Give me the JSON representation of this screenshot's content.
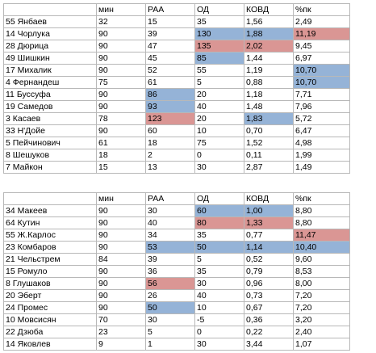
{
  "colors": {
    "highlight_blue": "#95b3d7",
    "highlight_red": "#da9694",
    "grid": "#b8b8b8"
  },
  "table1": {
    "headers": [
      "",
      "мин",
      "РАА",
      "ОД",
      "КОВД",
      "%пк"
    ],
    "rows": [
      {
        "cells": [
          "55 Янбаев",
          "32",
          "15",
          "35",
          "1,56",
          "2,49"
        ],
        "hl": [
          "",
          "",
          "",
          "",
          "",
          ""
        ]
      },
      {
        "cells": [
          "14 Чорлука",
          "90",
          "39",
          "130",
          "1,88",
          "11,19"
        ],
        "hl": [
          "",
          "",
          "",
          "blue",
          "blue",
          "red"
        ]
      },
      {
        "cells": [
          "28 Дюрица",
          "90",
          "47",
          "135",
          "2,02",
          "9,45"
        ],
        "hl": [
          "",
          "",
          "",
          "red",
          "red",
          ""
        ]
      },
      {
        "cells": [
          "49 Шишкин",
          "90",
          "45",
          "85",
          "1,44",
          "6,97"
        ],
        "hl": [
          "",
          "",
          "",
          "blue",
          "",
          ""
        ]
      },
      {
        "cells": [
          "17 Михалик",
          "90",
          "52",
          "55",
          "1,19",
          "10,70"
        ],
        "hl": [
          "",
          "",
          "",
          "",
          "",
          "blue"
        ]
      },
      {
        "cells": [
          "4 Фернандеш",
          "75",
          "61",
          "5",
          "0,88",
          "10,70"
        ],
        "hl": [
          "",
          "",
          "",
          "",
          "",
          "blue"
        ]
      },
      {
        "cells": [
          "11 Буссуфа",
          "90",
          "86",
          "20",
          "1,18",
          "7,71"
        ],
        "hl": [
          "",
          "",
          "blue",
          "",
          "",
          ""
        ]
      },
      {
        "cells": [
          "19 Самедов",
          "90",
          "93",
          "40",
          "1,48",
          "7,96"
        ],
        "hl": [
          "",
          "",
          "blue",
          "",
          "",
          ""
        ]
      },
      {
        "cells": [
          "3 Касаев",
          "78",
          "123",
          "20",
          "1,83",
          "5,72"
        ],
        "hl": [
          "",
          "",
          "red",
          "",
          "blue",
          ""
        ]
      },
      {
        "cells": [
          "33 Н'Дойе",
          "90",
          "60",
          "10",
          "0,70",
          "6,47"
        ],
        "hl": [
          "",
          "",
          "",
          "",
          "",
          ""
        ]
      },
      {
        "cells": [
          "5 Пейчинович",
          "61",
          "18",
          "75",
          "1,52",
          "4,98"
        ],
        "hl": [
          "",
          "",
          "",
          "",
          "",
          ""
        ]
      },
      {
        "cells": [
          "8 Шешуков",
          "18",
          "2",
          "0",
          "0,11",
          "1,99"
        ],
        "hl": [
          "",
          "",
          "",
          "",
          "",
          ""
        ]
      },
      {
        "cells": [
          "7 Майкон",
          "15",
          "13",
          "30",
          "2,87",
          "1,49"
        ],
        "hl": [
          "",
          "",
          "",
          "",
          "",
          ""
        ]
      }
    ]
  },
  "table2": {
    "headers": [
      "",
      "мин",
      "РАА",
      "ОД",
      "КОВД",
      "%пк"
    ],
    "rows": [
      {
        "cells": [
          "34 Макеев",
          "90",
          "30",
          "60",
          "1,00",
          "8,80"
        ],
        "hl": [
          "",
          "",
          "",
          "blue",
          "blue",
          ""
        ]
      },
      {
        "cells": [
          "64 Кутин",
          "90",
          "40",
          "80",
          "1,33",
          "8,80"
        ],
        "hl": [
          "",
          "",
          "",
          "red",
          "red",
          ""
        ]
      },
      {
        "cells": [
          "55 Ж.Карлос",
          "90",
          "34",
          "35",
          "0,77",
          "11,47"
        ],
        "hl": [
          "",
          "",
          "",
          "",
          "",
          "red"
        ]
      },
      {
        "cells": [
          "23 Комбаров",
          "90",
          "53",
          "50",
          "1,14",
          "10,40"
        ],
        "hl": [
          "",
          "",
          "blue",
          "blue",
          "blue",
          "blue"
        ]
      },
      {
        "cells": [
          "21 Чельстрем",
          "84",
          "39",
          "5",
          "0,52",
          "9,60"
        ],
        "hl": [
          "",
          "",
          "",
          "",
          "",
          ""
        ]
      },
      {
        "cells": [
          "15 Ромуло",
          "90",
          "36",
          "35",
          "0,79",
          "8,53"
        ],
        "hl": [
          "",
          "",
          "",
          "",
          "",
          ""
        ]
      },
      {
        "cells": [
          "8 Глушаков",
          "90",
          "56",
          "30",
          "0,96",
          "8,00"
        ],
        "hl": [
          "",
          "",
          "red",
          "",
          "",
          ""
        ]
      },
      {
        "cells": [
          "20 Эберт",
          "90",
          "26",
          "40",
          "0,73",
          "7,20"
        ],
        "hl": [
          "",
          "",
          "",
          "",
          "",
          ""
        ]
      },
      {
        "cells": [
          "24 Промес",
          "90",
          "50",
          "10",
          "0,67",
          "7,20"
        ],
        "hl": [
          "",
          "",
          "blue",
          "",
          "",
          ""
        ]
      },
      {
        "cells": [
          "10 Мовсисян",
          "70",
          "30",
          "-5",
          "0,36",
          "3,20"
        ],
        "hl": [
          "",
          "",
          "",
          "",
          "",
          ""
        ]
      },
      {
        "cells": [
          "22 Дзюба",
          "23",
          "5",
          "0",
          "0,22",
          "2,40"
        ],
        "hl": [
          "",
          "",
          "",
          "",
          "",
          ""
        ]
      },
      {
        "cells": [
          "14 Яковлев",
          "9",
          "1",
          "30",
          "3,44",
          "1,07"
        ],
        "hl": [
          "",
          "",
          "",
          "",
          "",
          ""
        ]
      }
    ]
  }
}
